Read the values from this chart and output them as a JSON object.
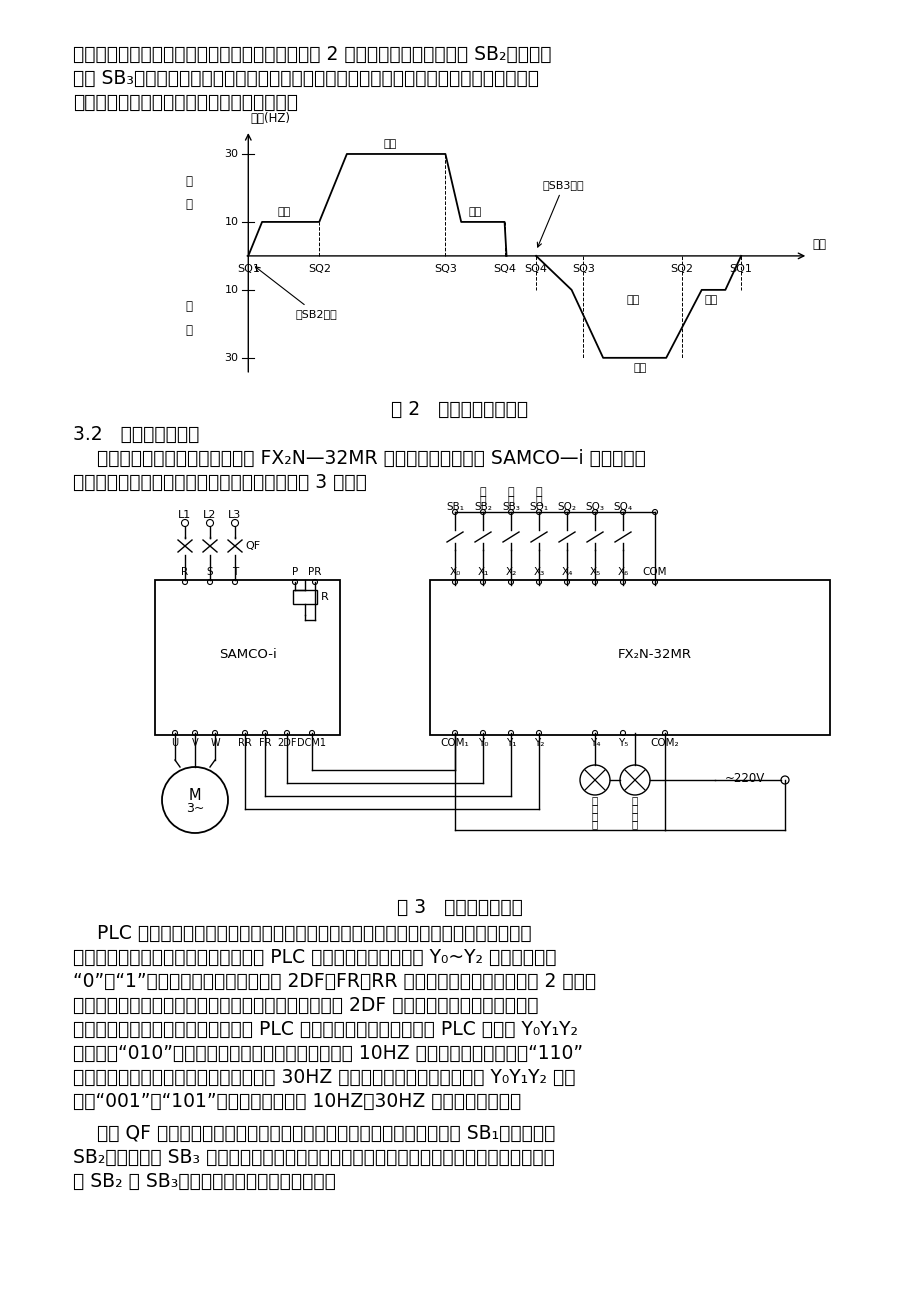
{
  "bg_color": "#ffffff",
  "para1": "程划分为三个行程区间，各区间段的升降速度如图 2 所示。按下提升起动按钮 SB₂（或下降",
  "para2": "按钮 SB₃），吊笼以较低的一速速度平稳起动，运行到预定位置时，以二速速度快速运行，",
  "para3": "等再到达预定位置时，以一速实现平稳停车。",
  "fig2_caption": "图 2   升降机升降速度图",
  "sec32_title": "3.2   系统的硬件构成",
  "sec32_para1": "    升降机自动控制系统主要由三菱 FX₂N—32MR 可编程控制器、三昆 SAMCO—i 变频器、三",
  "sec32_para2": "相鼠笼式异步电动机组成。系统的硬件接线如图 3 所示。",
  "fig3_caption": "图 3   系统的硬件接线",
  "plc_para1": "    PLC 控制一方面代替继电线路，另一方面，对于系统所要求的提升和下降、以及由限",
  "plc_para2": "位开关获取吊笼运行的位置信息，通过 PLC 内部程序的处理后，在 Y₀~Y₂ 端输出相应的",
  "plc_para3": "“0”、“1”信号来控制变频器输入端子 2DF、FR、RR 的状态，使变频器及时按图 2 所示输",
  "plc_para4": "出相应的频率，从而控制升降机的运行特性。速度档由 2DF 选择，每档速度的大小则通过",
  "plc_para5": "对变频器进行功能预置设定，再通过 PLC 的程序来控制频率切换。当 PLC 输出端 Y₀Y₁Y₂",
  "plc_para6": "的状态为“010”时，变频器输出一速频率，升降机以 10HZ 对应的转速上升，当为“110”",
  "plc_para7": "状态时，变频器输出二速频率，升降机以 30HZ 对应的转速上升；相应的，当 Y₀Y₁Y₂ 的状",
  "plc_para8": "态为“001”、“101”时，升降机分别以 10HZ、30HZ 对应的转速下降。",
  "plc_para9": "    图中 QF 为断路器，具有隔离、过电流、欠电压等保护作用。急停按钮 SB₁、上升按钮",
  "plc_para10": "SB₂、下降按钮 SB₃ 根据操作方便可安装在底部和顶部，或者两地都安装，操作时，只需按",
  "plc_para11": "下 SB₂ 或 SB₃，系统就可自动实现程序控制。",
  "speed_sq1l": 1.0,
  "speed_sq2l": 2.8,
  "speed_sq3l": 6.0,
  "speed_sq4l": 7.5,
  "speed_sq4r": 8.3,
  "speed_sq3r": 9.5,
  "speed_sq2r": 12.0,
  "speed_sq1r": 13.5
}
